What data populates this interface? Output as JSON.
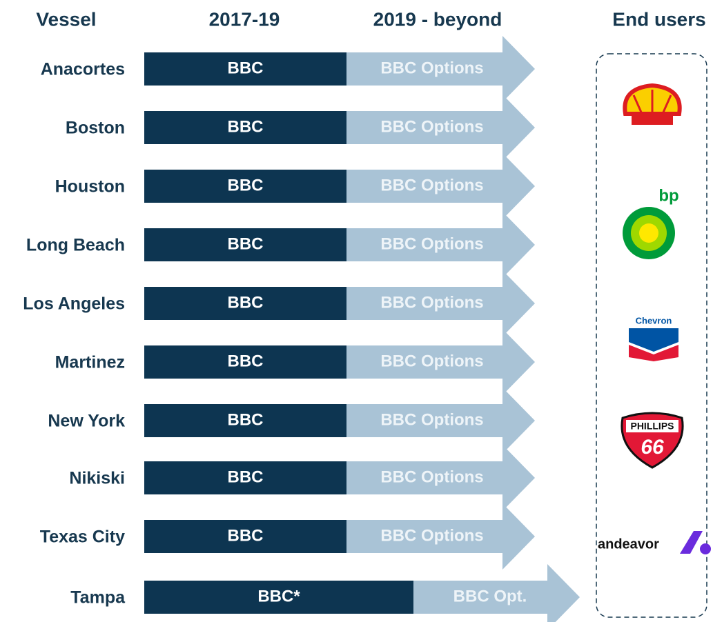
{
  "headers": [
    "Vessel",
    "2017-19",
    "2019 - beyond",
    "End users"
  ],
  "rows": [
    {
      "vessel": "Anacortes",
      "period1": "BBC",
      "period2": "BBC Options"
    },
    {
      "vessel": "Boston",
      "period1": "BBC",
      "period2": "BBC Options"
    },
    {
      "vessel": "Houston",
      "period1": "BBC",
      "period2": "BBC Options"
    },
    {
      "vessel": "Long Beach",
      "period1": "BBC",
      "period2": "BBC Options"
    },
    {
      "vessel": "Los Angeles",
      "period1": "BBC",
      "period2": "BBC Options"
    },
    {
      "vessel": "Martinez",
      "period1": "BBC",
      "period2": "BBC Options"
    },
    {
      "vessel": "New York",
      "period1": "BBC",
      "period2": "BBC Options"
    },
    {
      "vessel": "Nikiski",
      "period1": "BBC",
      "period2": "BBC Options"
    },
    {
      "vessel": "Texas City",
      "period1": "BBC",
      "period2": "BBC Options"
    },
    {
      "vessel": "Tampa",
      "period1": "BBC*",
      "period2": "BBC Opt."
    }
  ],
  "logos": {
    "bp": "bp",
    "chevron": "Chevron",
    "phillips": "PHILLIPS",
    "phillips_number": "66",
    "andeavor": "andeavor"
  }
}
